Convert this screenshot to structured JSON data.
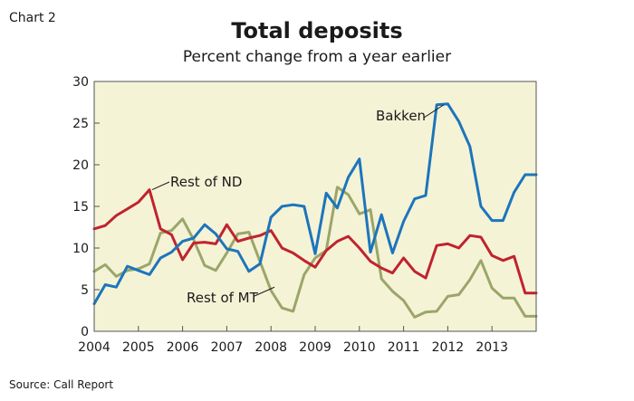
{
  "header": {
    "chart_label": "Chart 2",
    "title": "Total deposits",
    "subtitle": "Percent change from a year earlier"
  },
  "footer": {
    "source": "Source: Call Report"
  },
  "colors": {
    "plot_background": "#f5f3d6",
    "bakken": "#1c75bc",
    "rest_of_nd": "#c0232e",
    "rest_of_mt": "#9aa66a"
  },
  "chart_data": {
    "type": "line",
    "title": "Total deposits",
    "subtitle": "Percent change from a year earlier",
    "xlabel": "",
    "ylabel": "",
    "xlim": [
      2004,
      2014
    ],
    "ylim": [
      0,
      30
    ],
    "x_ticks": [
      "2004",
      "2005",
      "2006",
      "2007",
      "2008",
      "2009",
      "2010",
      "2011",
      "2012",
      "2013"
    ],
    "y_ticks": [
      "0",
      "5",
      "10",
      "15",
      "20",
      "25",
      "30"
    ],
    "grid": false,
    "x": [
      2004.0,
      2004.25,
      2004.5,
      2004.75,
      2005.0,
      2005.25,
      2005.5,
      2005.75,
      2006.0,
      2006.25,
      2006.5,
      2006.75,
      2007.0,
      2007.25,
      2007.5,
      2007.75,
      2008.0,
      2008.25,
      2008.5,
      2008.75,
      2009.0,
      2009.25,
      2009.5,
      2009.75,
      2010.0,
      2010.25,
      2010.5,
      2010.75,
      2011.0,
      2011.25,
      2011.5,
      2011.75,
      2012.0,
      2012.25,
      2012.5,
      2012.75,
      2013.0,
      2013.25,
      2013.5,
      2013.75,
      2014.0
    ],
    "series": [
      {
        "name": "Bakken",
        "color": "#1c75bc",
        "values": [
          3.3,
          5.6,
          5.3,
          7.8,
          7.3,
          6.8,
          8.8,
          9.5,
          10.8,
          11.2,
          12.8,
          11.7,
          9.9,
          9.6,
          7.2,
          8.1,
          13.7,
          15.0,
          15.2,
          15.0,
          9.3,
          16.6,
          14.8,
          18.5,
          20.7,
          9.5,
          14.0,
          9.4,
          13.2,
          15.9,
          16.3,
          27.2,
          27.3,
          25.2,
          22.2,
          15.0,
          13.3,
          13.3,
          16.7,
          18.8,
          18.8
        ]
      },
      {
        "name": "Rest of ND",
        "color": "#c0232e",
        "values": [
          12.3,
          12.7,
          13.9,
          14.7,
          15.5,
          17.0,
          12.3,
          11.6,
          8.6,
          10.6,
          10.7,
          10.5,
          12.8,
          10.8,
          11.2,
          11.5,
          12.1,
          10.0,
          9.4,
          8.5,
          7.7,
          9.7,
          10.8,
          11.4,
          10.0,
          8.4,
          7.6,
          7.0,
          8.8,
          7.2,
          6.4,
          10.3,
          10.5,
          10.0,
          11.5,
          11.3,
          9.1,
          8.5,
          9.0,
          4.6,
          4.6
        ]
      },
      {
        "name": "Rest of MT",
        "color": "#9aa66a",
        "values": [
          7.2,
          8.0,
          6.6,
          7.3,
          7.5,
          8.1,
          11.8,
          12.1,
          13.5,
          11.0,
          7.9,
          7.3,
          9.4,
          11.7,
          11.9,
          8.4,
          4.9,
          2.8,
          2.4,
          6.8,
          8.8,
          9.7,
          17.3,
          16.4,
          14.1,
          14.6,
          6.3,
          4.8,
          3.7,
          1.7,
          2.3,
          2.4,
          4.2,
          4.4,
          6.2,
          8.5,
          5.2,
          4.0,
          4.0,
          1.8,
          1.8
        ]
      }
    ],
    "annotations": [
      {
        "text": "Bakken",
        "x": 2012.0,
        "y": 27.2
      },
      {
        "text": "Rest of ND",
        "x": 2005.25,
        "y": 17.0
      },
      {
        "text": "Rest of MT",
        "x": 2008.0,
        "y": 5.3
      }
    ]
  }
}
